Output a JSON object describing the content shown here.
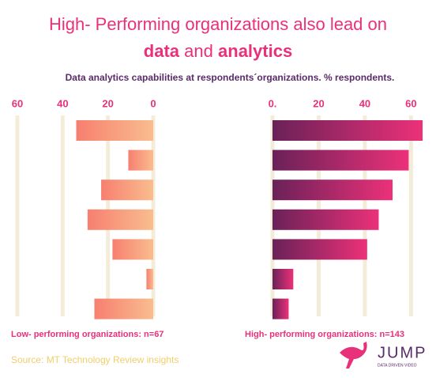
{
  "title_line1": "High- Performing organizations also lead on",
  "title_line2": [
    "data",
    "and",
    "analytics"
  ],
  "subtitle": "Data analytics  capabilities at respondents´organizations. % respondents.",
  "source": "Source: MT Technology Review insights",
  "brand": {
    "name": "JUMP",
    "tagline": "DATA DRIVEN VIDEO"
  },
  "chart_data": [
    {
      "type": "bar",
      "orientation": "horizontal",
      "reverse": true,
      "xlabel": "Low- performing organizations: n=67",
      "values": [
        34,
        11,
        23,
        29,
        18,
        3,
        26
      ],
      "colors": [
        "#f9bd8e",
        "#f77f70"
      ],
      "xlim": [
        0,
        60
      ],
      "xticks": [
        60,
        40,
        20,
        0
      ],
      "grid": true
    },
    {
      "type": "bar",
      "orientation": "horizontal",
      "reverse": false,
      "xlabel": "High- performing organizations: n=143",
      "values": [
        65,
        59,
        52,
        46,
        41,
        9,
        7
      ],
      "colors": [
        "#6a2158",
        "#ec3179"
      ],
      "xlim": [
        0,
        65
      ],
      "xticks": [
        {
          "value": 0,
          "label": "0."
        },
        20,
        40,
        60
      ],
      "grid": true
    }
  ]
}
